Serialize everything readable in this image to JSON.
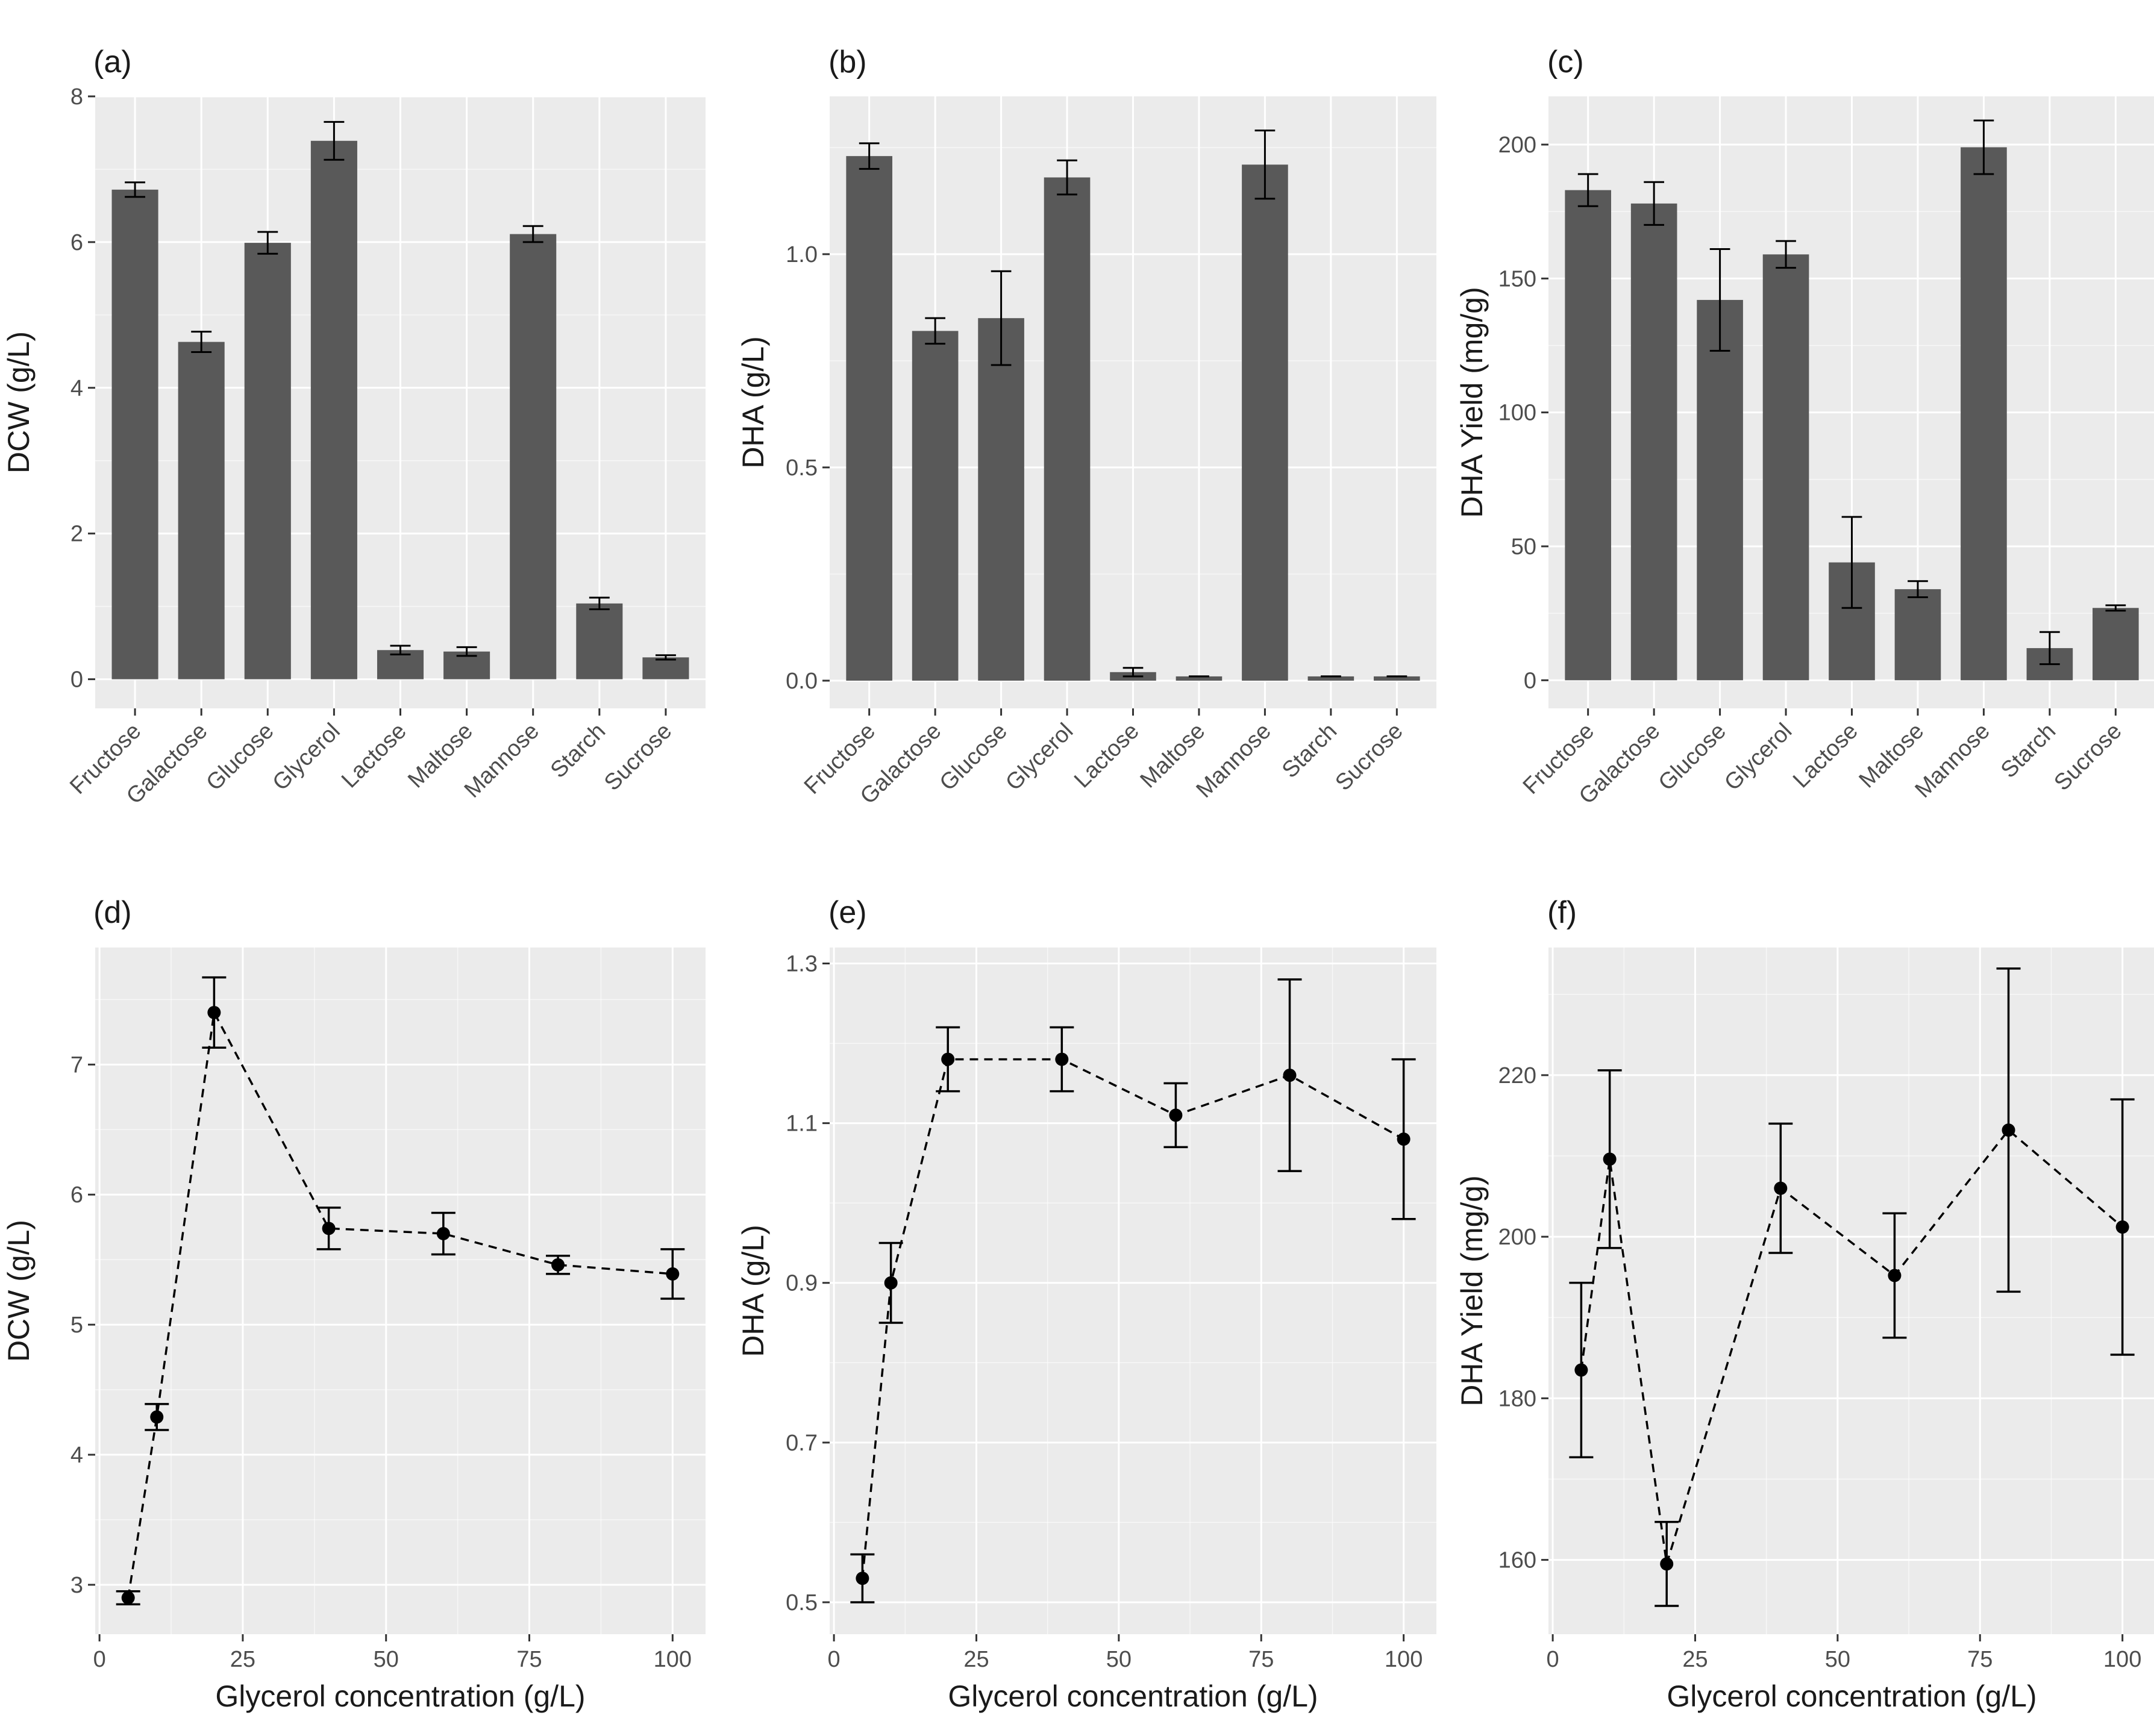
{
  "colors": {
    "panel_bg": "#ebebeb",
    "grid_major": "#ffffff",
    "bar_fill": "#595959",
    "point": "#000000",
    "tick_text": "#4d4d4d",
    "title_text": "#1a1a1a"
  },
  "chart_data": [
    {
      "tag": "(a)",
      "type": "bar",
      "categories": [
        "Fructose",
        "Galactose",
        "Glucose",
        "Glycerol",
        "Lactose",
        "Maltose",
        "Mannose",
        "Starch",
        "Sucrose"
      ],
      "values": [
        6.72,
        4.63,
        5.99,
        7.39,
        0.4,
        0.38,
        6.11,
        1.04,
        0.3
      ],
      "errors": [
        0.1,
        0.14,
        0.15,
        0.26,
        0.06,
        0.06,
        0.11,
        0.08,
        0.03
      ],
      "xlabel": "",
      "ylabel": "DCW (g/L)",
      "ylim": [
        -0.4,
        8.0
      ],
      "yticks": [
        0,
        2,
        4,
        6,
        8
      ],
      "ytick_labels": [
        "0",
        "2",
        "4",
        "6",
        "8"
      ],
      "grid": true
    },
    {
      "tag": "(b)",
      "type": "bar",
      "categories": [
        "Fructose",
        "Galactose",
        "Glucose",
        "Glycerol",
        "Lactose",
        "Maltose",
        "Mannose",
        "Starch",
        "Sucrose"
      ],
      "values": [
        1.23,
        0.82,
        0.85,
        1.18,
        0.02,
        0.01,
        1.21,
        0.01,
        0.01
      ],
      "errors": [
        0.03,
        0.03,
        0.11,
        0.04,
        0.01,
        0.0,
        0.08,
        0.0,
        0.0
      ],
      "xlabel": "",
      "ylabel": "DHA (g/L)",
      "ylim": [
        -0.065,
        1.37
      ],
      "yticks": [
        0.0,
        0.5,
        1.0
      ],
      "ytick_labels": [
        "0.0",
        "0.5",
        "1.0"
      ],
      "grid": true
    },
    {
      "tag": "(c)",
      "type": "bar",
      "categories": [
        "Fructose",
        "Galactose",
        "Glucose",
        "Glycerol",
        "Lactose",
        "Maltose",
        "Mannose",
        "Starch",
        "Sucrose"
      ],
      "values": [
        183,
        178,
        142,
        159,
        44,
        34,
        199,
        12,
        27
      ],
      "errors": [
        6,
        8,
        19,
        5,
        17,
        3,
        10,
        6,
        1
      ],
      "xlabel": "",
      "ylabel": "DHA Yield (mg/g)",
      "ylim": [
        -10.5,
        218
      ],
      "yticks": [
        0,
        50,
        100,
        150,
        200
      ],
      "ytick_labels": [
        "0",
        "50",
        "100",
        "150",
        "200"
      ],
      "grid": true
    },
    {
      "tag": "(d)",
      "type": "line",
      "x": [
        5,
        10,
        20,
        40,
        60,
        80,
        100
      ],
      "values": [
        2.9,
        4.29,
        7.4,
        5.74,
        5.7,
        5.46,
        5.39
      ],
      "errors": [
        0.05,
        0.1,
        0.27,
        0.16,
        0.16,
        0.07,
        0.19
      ],
      "xlabel": "Glycerol concentration (g/L)",
      "ylabel": "DCW (g/L)",
      "xlim": [
        -0.75,
        105.75
      ],
      "xticks": [
        0,
        25,
        50,
        75,
        100
      ],
      "xtick_labels": [
        "0",
        "25",
        "50",
        "75",
        "100"
      ],
      "ylim": [
        2.62,
        7.9
      ],
      "yticks": [
        3,
        4,
        5,
        6,
        7
      ],
      "ytick_labels": [
        "3",
        "4",
        "5",
        "6",
        "7"
      ],
      "line_style": "dashed",
      "grid": true
    },
    {
      "tag": "(e)",
      "type": "line",
      "x": [
        5,
        10,
        20,
        40,
        60,
        80,
        100
      ],
      "values": [
        0.53,
        0.9,
        1.18,
        1.18,
        1.11,
        1.16,
        1.08
      ],
      "errors": [
        0.03,
        0.05,
        0.04,
        0.04,
        0.04,
        0.12,
        0.1
      ],
      "xlabel": "Glycerol concentration (g/L)",
      "ylabel": "DHA (g/L)",
      "xlim": [
        -0.75,
        105.75
      ],
      "xticks": [
        0,
        25,
        50,
        75,
        100
      ],
      "xtick_labels": [
        "0",
        "25",
        "50",
        "75",
        "100"
      ],
      "ylim": [
        0.46,
        1.32
      ],
      "yticks": [
        0.5,
        0.7,
        0.9,
        1.1,
        1.3
      ],
      "ytick_labels": [
        "0.5",
        "0.7",
        "0.9",
        "1.1",
        "1.3"
      ],
      "line_style": "dashed",
      "grid": true
    },
    {
      "tag": "(f)",
      "type": "line",
      "x": [
        5,
        10,
        20,
        40,
        60,
        80,
        100
      ],
      "values": [
        183.5,
        209.6,
        159.5,
        206.0,
        195.2,
        213.2,
        201.2
      ],
      "errors": [
        10.8,
        11.0,
        5.2,
        8.0,
        7.7,
        20.0,
        15.8
      ],
      "xlabel": "Glycerol concentration (g/L)",
      "ylabel": "DHA Yield (mg/g)",
      "xlim": [
        -0.75,
        105.75
      ],
      "xticks": [
        0,
        25,
        50,
        75,
        100
      ],
      "xtick_labels": [
        "0",
        "25",
        "50",
        "75",
        "100"
      ],
      "ylim": [
        150.8,
        235.8
      ],
      "yticks": [
        160,
        180,
        200,
        220
      ],
      "ytick_labels": [
        "160",
        "180",
        "200",
        "220"
      ],
      "line_style": "dashed",
      "grid": true
    }
  ]
}
